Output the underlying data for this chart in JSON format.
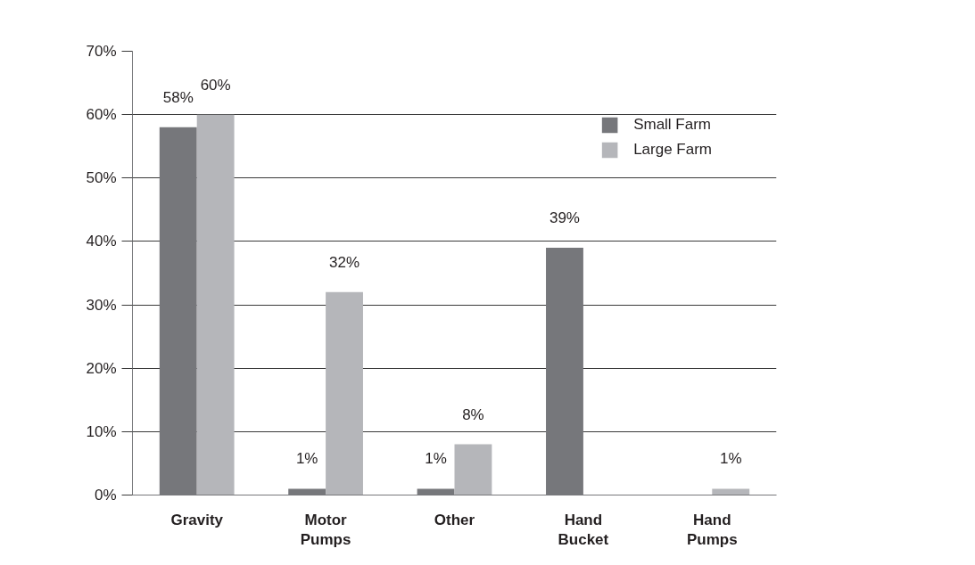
{
  "chart_data": {
    "type": "bar",
    "categories": [
      "Gravity",
      "Motor Pumps",
      "Other",
      "Hand Bucket",
      "Hand Pumps"
    ],
    "series": [
      {
        "name": "Small Farm",
        "color": "#76777b",
        "values": [
          58,
          1,
          1,
          39,
          null
        ],
        "value_labels": [
          "58%",
          "1%",
          "1%",
          "39%",
          null
        ]
      },
      {
        "name": "Large Farm",
        "color": "#b5b6ba",
        "values": [
          60,
          32,
          8,
          null,
          1
        ],
        "value_labels": [
          "60%",
          "32%",
          "8%",
          null,
          "1%"
        ]
      }
    ],
    "ylim": [
      0,
      70
    ],
    "yticks": [
      {
        "value": 0,
        "label": "0%"
      },
      {
        "value": 10,
        "label": "10%"
      },
      {
        "value": 20,
        "label": "20%"
      },
      {
        "value": 30,
        "label": "30%"
      },
      {
        "value": 40,
        "label": "40%"
      },
      {
        "value": 50,
        "label": "50%"
      },
      {
        "value": 60,
        "label": "60%"
      },
      {
        "value": 70,
        "label": "70%"
      }
    ],
    "grid": "y",
    "legend": "top right"
  }
}
